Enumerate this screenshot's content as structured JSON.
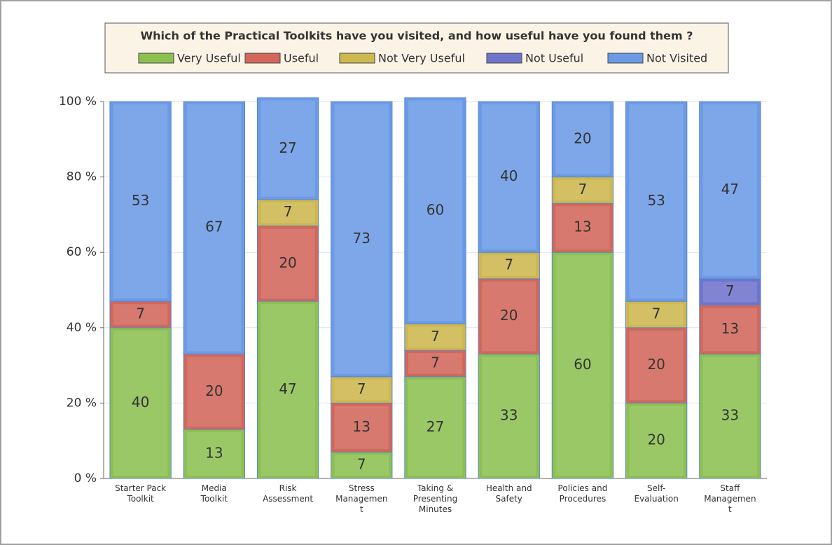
{
  "chart_data": {
    "type": "stacked_bar",
    "title": "Which of the Practical Toolkits have you visited, and how useful have you found them ?",
    "categories": [
      "Starter Pack\nToolkit",
      "Media\nToolkit",
      "Risk\nAssessment",
      "Stress\nManagemen\nt",
      "Taking &\nPresenting\nMinutes",
      "Health and\nSafety",
      "Policies and\nProcedures",
      "Self-\nEvaluation",
      "Staff\nManagemen\nt"
    ],
    "series": [
      {
        "name": "Very Useful",
        "color": "#8cc152",
        "values": [
          40,
          13,
          47,
          7,
          27,
          33,
          60,
          20,
          33
        ]
      },
      {
        "name": "Useful",
        "color": "#d2675a",
        "values": [
          7,
          20,
          20,
          13,
          7,
          20,
          13,
          20,
          13
        ]
      },
      {
        "name": "Not Very Useful",
        "color": "#cdb84f",
        "values": [
          null,
          null,
          7,
          7,
          7,
          7,
          7,
          7,
          null
        ]
      },
      {
        "name": "Not Useful",
        "color": "#6f74cc",
        "values": [
          null,
          null,
          null,
          null,
          null,
          null,
          null,
          null,
          7
        ]
      },
      {
        "name": "Not Visited",
        "color": "#6b9be6",
        "values": [
          53,
          67,
          27,
          73,
          60,
          40,
          20,
          53,
          47
        ]
      }
    ],
    "ylim": [
      0,
      100
    ],
    "yticks": [
      {
        "value": 0,
        "label": "0 %"
      },
      {
        "value": 20,
        "label": "20 %"
      },
      {
        "value": 40,
        "label": "40 %"
      },
      {
        "value": 60,
        "label": "60 %"
      },
      {
        "value": 80,
        "label": "80 %"
      },
      {
        "value": 100,
        "label": "100 %"
      }
    ],
    "grid": true,
    "legend": "top"
  }
}
